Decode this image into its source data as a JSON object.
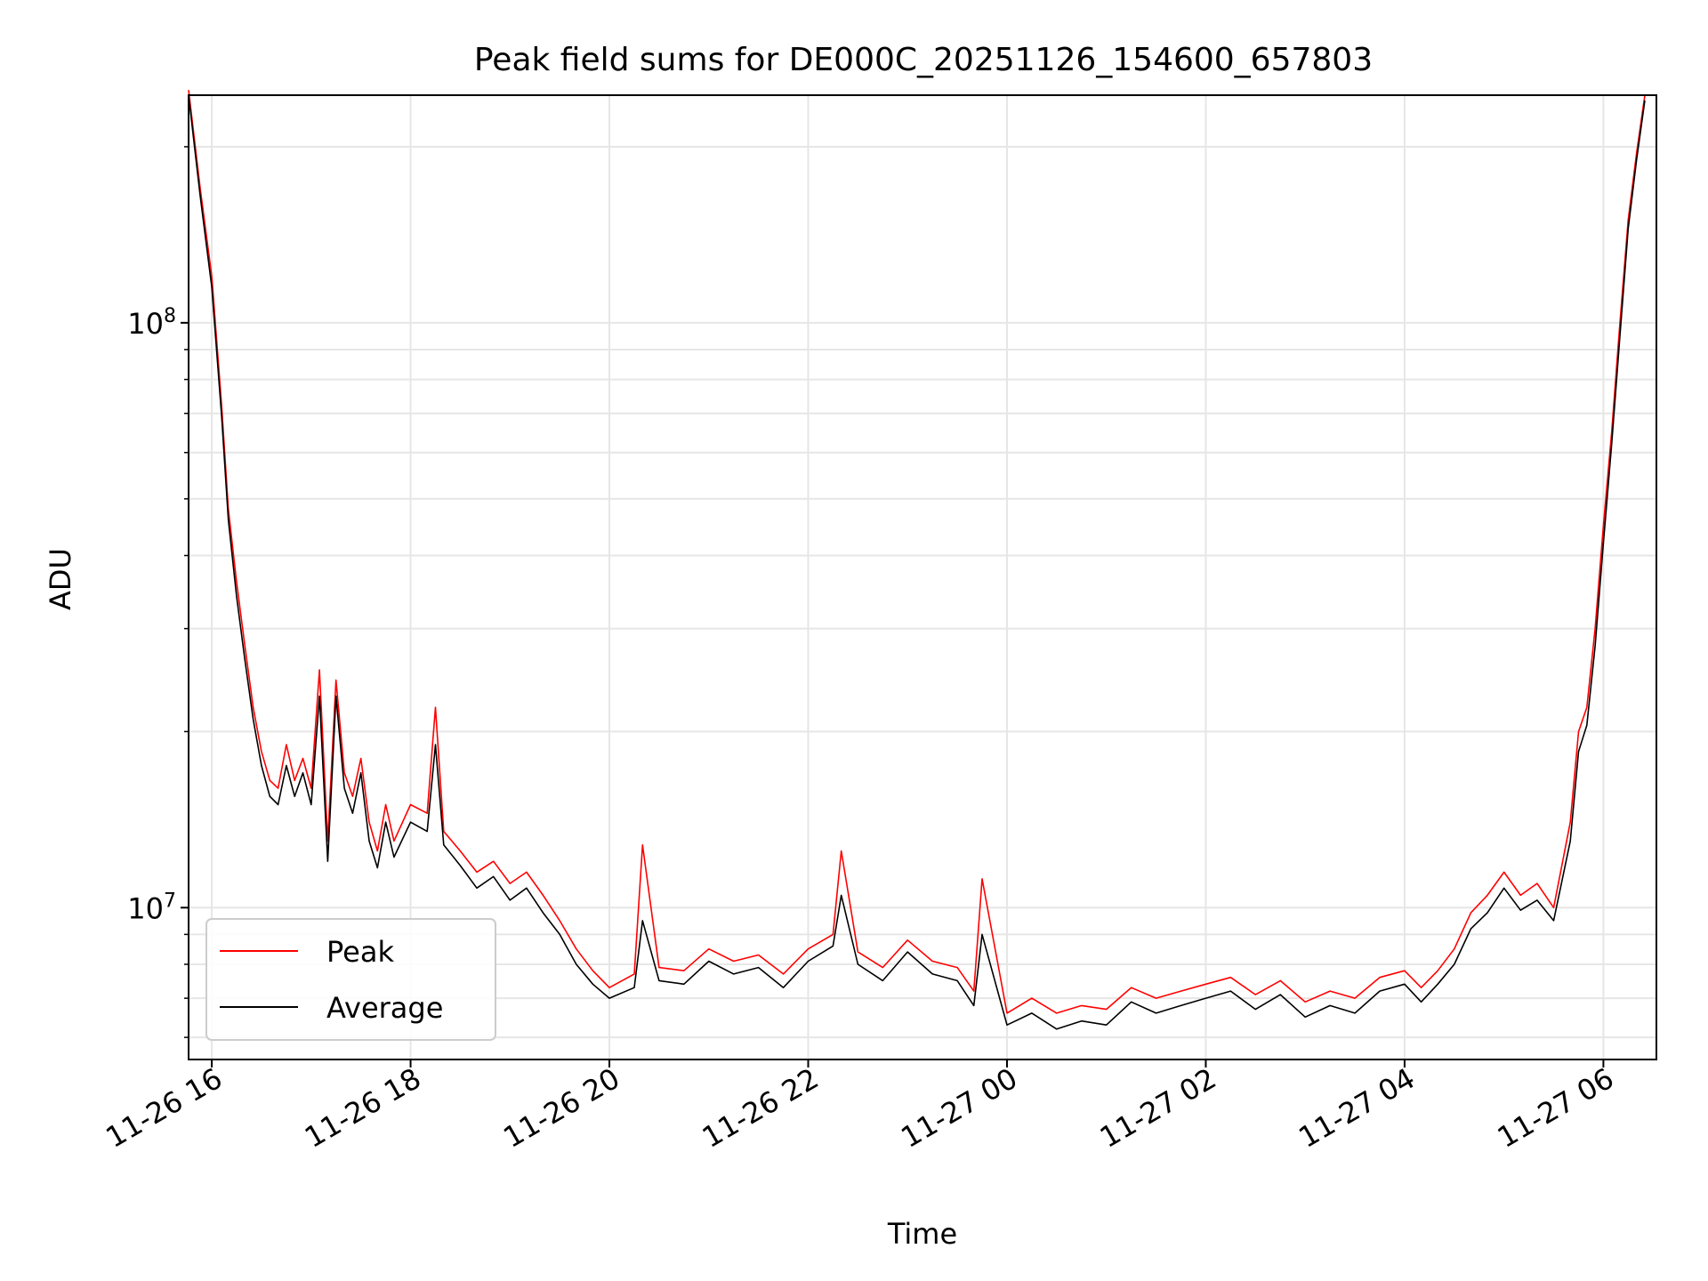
{
  "chart_data": {
    "type": "line",
    "title": "Peak field sums for DE000C_20251126_154600_657803",
    "xlabel": "Time",
    "ylabel": "ADU",
    "yscale": "log",
    "ylim": [
      5500000,
      245000000
    ],
    "xlim": [
      "2025-11-26 15:46",
      "2025-11-27 06:32"
    ],
    "grid": true,
    "legend": "lower-left",
    "x_ticks": [
      "11-26 16",
      "11-26 18",
      "11-26 20",
      "11-26 22",
      "11-27 00",
      "11-27 02",
      "11-27 04",
      "11-27 06"
    ],
    "x_tick_times": [
      "2025-11-26 16:00",
      "2025-11-26 18:00",
      "2025-11-26 20:00",
      "2025-11-26 22:00",
      "2025-11-27 00:00",
      "2025-11-27 02:00",
      "2025-11-27 04:00",
      "2025-11-27 06:00"
    ],
    "y_ticks": [
      {
        "value": 10000000,
        "base": "10",
        "exp": "7"
      },
      {
        "value": 100000000,
        "base": "10",
        "exp": "8"
      }
    ],
    "series": [
      {
        "name": "Peak",
        "color": "#ff0000",
        "x": [
          "2025-11-26 15:46",
          "2025-11-26 15:53",
          "2025-11-26 16:00",
          "2025-11-26 16:06",
          "2025-11-26 16:10",
          "2025-11-26 16:15",
          "2025-11-26 16:20",
          "2025-11-26 16:25",
          "2025-11-26 16:30",
          "2025-11-26 16:35",
          "2025-11-26 16:40",
          "2025-11-26 16:45",
          "2025-11-26 16:50",
          "2025-11-26 16:55",
          "2025-11-26 17:00",
          "2025-11-26 17:05",
          "2025-11-26 17:10",
          "2025-11-26 17:15",
          "2025-11-26 17:20",
          "2025-11-26 17:25",
          "2025-11-26 17:30",
          "2025-11-26 17:35",
          "2025-11-26 17:40",
          "2025-11-26 17:45",
          "2025-11-26 17:50",
          "2025-11-26 18:00",
          "2025-11-26 18:10",
          "2025-11-26 18:15",
          "2025-11-26 18:20",
          "2025-11-26 18:30",
          "2025-11-26 18:40",
          "2025-11-26 18:50",
          "2025-11-26 19:00",
          "2025-11-26 19:10",
          "2025-11-26 19:20",
          "2025-11-26 19:30",
          "2025-11-26 19:40",
          "2025-11-26 19:50",
          "2025-11-26 20:00",
          "2025-11-26 20:15",
          "2025-11-26 20:20",
          "2025-11-26 20:30",
          "2025-11-26 20:45",
          "2025-11-26 21:00",
          "2025-11-26 21:15",
          "2025-11-26 21:30",
          "2025-11-26 21:45",
          "2025-11-26 22:00",
          "2025-11-26 22:15",
          "2025-11-26 22:20",
          "2025-11-26 22:30",
          "2025-11-26 22:45",
          "2025-11-26 23:00",
          "2025-11-26 23:15",
          "2025-11-26 23:30",
          "2025-11-26 23:40",
          "2025-11-26 23:45",
          "2025-11-27 00:00",
          "2025-11-27 00:15",
          "2025-11-27 00:30",
          "2025-11-27 00:45",
          "2025-11-27 01:00",
          "2025-11-27 01:15",
          "2025-11-27 01:30",
          "2025-11-27 01:45",
          "2025-11-27 02:00",
          "2025-11-27 02:15",
          "2025-11-27 02:30",
          "2025-11-27 02:45",
          "2025-11-27 03:00",
          "2025-11-27 03:15",
          "2025-11-27 03:30",
          "2025-11-27 03:45",
          "2025-11-27 04:00",
          "2025-11-27 04:10",
          "2025-11-27 04:20",
          "2025-11-27 04:30",
          "2025-11-27 04:40",
          "2025-11-27 04:50",
          "2025-11-27 05:00",
          "2025-11-27 05:10",
          "2025-11-27 05:20",
          "2025-11-27 05:30",
          "2025-11-27 05:40",
          "2025-11-27 05:45",
          "2025-11-27 05:50",
          "2025-11-27 05:55",
          "2025-11-27 06:00",
          "2025-11-27 06:05",
          "2025-11-27 06:10",
          "2025-11-27 06:15",
          "2025-11-27 06:20",
          "2025-11-27 06:25"
        ],
        "y": [
          250000000,
          170000000,
          120000000,
          72000000,
          48000000,
          36000000,
          28000000,
          22000000,
          18500000,
          16500000,
          16000000,
          19000000,
          16500000,
          18000000,
          16000000,
          25500000,
          13000000,
          24500000,
          17000000,
          15500000,
          18000000,
          14000000,
          12500000,
          15000000,
          13000000,
          15000000,
          14500000,
          22000000,
          13500000,
          12500000,
          11500000,
          12000000,
          11000000,
          11500000,
          10500000,
          9500000,
          8500000,
          7800000,
          7300000,
          7700000,
          12800000,
          7900000,
          7800000,
          8500000,
          8100000,
          8300000,
          7700000,
          8500000,
          9000000,
          12500000,
          8400000,
          7900000,
          8800000,
          8100000,
          7900000,
          7200000,
          11200000,
          6600000,
          7000000,
          6600000,
          6800000,
          6700000,
          7300000,
          7000000,
          7200000,
          7400000,
          7600000,
          7100000,
          7500000,
          6900000,
          7200000,
          7000000,
          7600000,
          7800000,
          7300000,
          7800000,
          8500000,
          9800000,
          10500000,
          11500000,
          10500000,
          11000000,
          10000000,
          14000000,
          20000000,
          22000000,
          30000000,
          45000000,
          65000000,
          100000000,
          150000000,
          195000000,
          245000000
        ]
      },
      {
        "name": "Average",
        "color": "#000000",
        "x": [
          "2025-11-26 15:46",
          "2025-11-26 15:53",
          "2025-11-26 16:00",
          "2025-11-26 16:06",
          "2025-11-26 16:10",
          "2025-11-26 16:15",
          "2025-11-26 16:20",
          "2025-11-26 16:25",
          "2025-11-26 16:30",
          "2025-11-26 16:35",
          "2025-11-26 16:40",
          "2025-11-26 16:45",
          "2025-11-26 16:50",
          "2025-11-26 16:55",
          "2025-11-26 17:00",
          "2025-11-26 17:05",
          "2025-11-26 17:10",
          "2025-11-26 17:15",
          "2025-11-26 17:20",
          "2025-11-26 17:25",
          "2025-11-26 17:30",
          "2025-11-26 17:35",
          "2025-11-26 17:40",
          "2025-11-26 17:45",
          "2025-11-26 17:50",
          "2025-11-26 18:00",
          "2025-11-26 18:10",
          "2025-11-26 18:15",
          "2025-11-26 18:20",
          "2025-11-26 18:30",
          "2025-11-26 18:40",
          "2025-11-26 18:50",
          "2025-11-26 19:00",
          "2025-11-26 19:10",
          "2025-11-26 19:20",
          "2025-11-26 19:30",
          "2025-11-26 19:40",
          "2025-11-26 19:50",
          "2025-11-26 20:00",
          "2025-11-26 20:15",
          "2025-11-26 20:20",
          "2025-11-26 20:30",
          "2025-11-26 20:45",
          "2025-11-26 21:00",
          "2025-11-26 21:15",
          "2025-11-26 21:30",
          "2025-11-26 21:45",
          "2025-11-26 22:00",
          "2025-11-26 22:15",
          "2025-11-26 22:20",
          "2025-11-26 22:30",
          "2025-11-26 22:45",
          "2025-11-26 23:00",
          "2025-11-26 23:15",
          "2025-11-26 23:30",
          "2025-11-26 23:40",
          "2025-11-26 23:45",
          "2025-11-27 00:00",
          "2025-11-27 00:15",
          "2025-11-27 00:30",
          "2025-11-27 00:45",
          "2025-11-27 01:00",
          "2025-11-27 01:15",
          "2025-11-27 01:30",
          "2025-11-27 01:45",
          "2025-11-27 02:00",
          "2025-11-27 02:15",
          "2025-11-27 02:30",
          "2025-11-27 02:45",
          "2025-11-27 03:00",
          "2025-11-27 03:15",
          "2025-11-27 03:30",
          "2025-11-27 03:45",
          "2025-11-27 04:00",
          "2025-11-27 04:10",
          "2025-11-27 04:20",
          "2025-11-27 04:30",
          "2025-11-27 04:40",
          "2025-11-27 04:50",
          "2025-11-27 05:00",
          "2025-11-27 05:10",
          "2025-11-27 05:20",
          "2025-11-27 05:30",
          "2025-11-27 05:40",
          "2025-11-27 05:45",
          "2025-11-27 05:50",
          "2025-11-27 05:55",
          "2025-11-27 06:00",
          "2025-11-27 06:05",
          "2025-11-27 06:10",
          "2025-11-27 06:15",
          "2025-11-27 06:20",
          "2025-11-27 06:25"
        ],
        "y": [
          245000000,
          165000000,
          115000000,
          69000000,
          46000000,
          34000000,
          26500000,
          21000000,
          17500000,
          15500000,
          15000000,
          17500000,
          15500000,
          17000000,
          15000000,
          23000000,
          12000000,
          23000000,
          16000000,
          14500000,
          17000000,
          13000000,
          11700000,
          14000000,
          12200000,
          14000000,
          13500000,
          19000000,
          12800000,
          11800000,
          10800000,
          11300000,
          10300000,
          10800000,
          9800000,
          9000000,
          8000000,
          7400000,
          7000000,
          7300000,
          9500000,
          7500000,
          7400000,
          8100000,
          7700000,
          7900000,
          7300000,
          8100000,
          8600000,
          10500000,
          8000000,
          7500000,
          8400000,
          7700000,
          7500000,
          6800000,
          9000000,
          6300000,
          6600000,
          6200000,
          6400000,
          6300000,
          6900000,
          6600000,
          6800000,
          7000000,
          7200000,
          6700000,
          7100000,
          6500000,
          6800000,
          6600000,
          7200000,
          7400000,
          6900000,
          7400000,
          8000000,
          9200000,
          9800000,
          10800000,
          9900000,
          10300000,
          9500000,
          13000000,
          18500000,
          20500000,
          28000000,
          42000000,
          62000000,
          95000000,
          145000000,
          190000000,
          240000000
        ]
      }
    ]
  }
}
